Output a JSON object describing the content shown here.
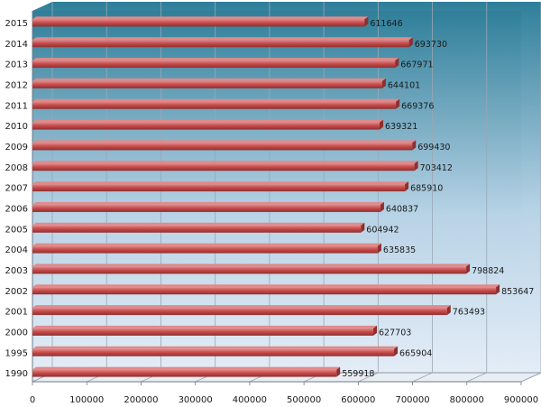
{
  "chart_data": {
    "type": "bar",
    "orientation": "horizontal",
    "style": "3d",
    "categories": [
      "2015",
      "2014",
      "2013",
      "2012",
      "2011",
      "2010",
      "2009",
      "2008",
      "2007",
      "2006",
      "2005",
      "2004",
      "2003",
      "2002",
      "2001",
      "2000",
      "1995",
      "1990"
    ],
    "values": [
      611646,
      693730,
      667971,
      644101,
      669376,
      639321,
      699430,
      703412,
      685910,
      640837,
      604942,
      635835,
      798824,
      853647,
      763493,
      627703,
      665904,
      559918
    ],
    "data_labels": [
      "611646",
      "693730",
      "667971",
      "644101",
      "669376",
      "639321",
      "699430",
      "703412",
      "685910",
      "640837",
      "604942",
      "635835",
      "798824",
      "853647",
      "763493",
      "627703",
      "665904",
      "559918"
    ],
    "x_ticks": [
      "0",
      "100000",
      "200000",
      "300000",
      "400000",
      "500000",
      "600000",
      "700000",
      "800000",
      "900000"
    ],
    "xlim": [
      0,
      900000
    ],
    "title": "",
    "xlabel": "",
    "ylabel": "",
    "grid": "vertical",
    "legend": "none",
    "colors": {
      "bar": "#c94c4c",
      "bar_top": "#e08a8a",
      "bar_dark": "#8f2f2f",
      "background_top": "#2f7f9a",
      "background_bottom": "#e6eef8",
      "grid": "#9aa7b4",
      "axis": "#6f7a86"
    }
  }
}
